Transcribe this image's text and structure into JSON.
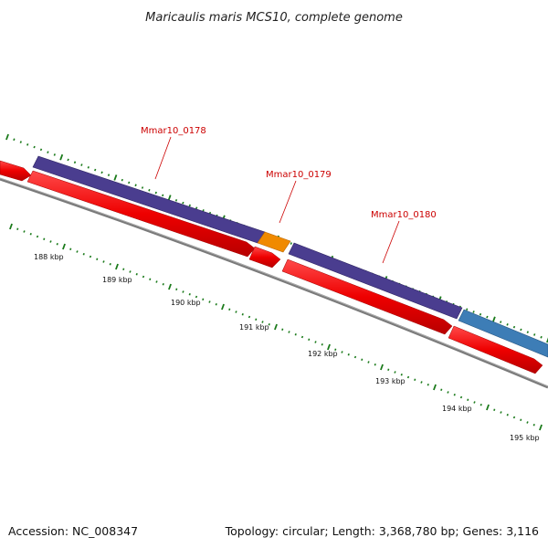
{
  "title": "Maricaulis maris MCS10, complete genome",
  "accession_label": "Accession: NC_008347",
  "topology_label": "Topology: circular; Length: 3,368,780 bp; Genes: 3,116",
  "scale_labels": [
    "188 kbp",
    "189 kbp",
    "190 kbp",
    "191 kbp",
    "192 kbp",
    "193 kbp",
    "194 kbp",
    "195 kbp"
  ],
  "gene_labels": [
    {
      "name": "Mmar10_0178"
    },
    {
      "name": "Mmar10_0179"
    },
    {
      "name": "Mmar10_0180"
    }
  ],
  "colors": {
    "cds": "#ee0000",
    "gene_purple": "#4a3d8f",
    "gene_orange": "#f08a00",
    "gene_blue": "#3d7db6",
    "backbone": "#7a7a7a",
    "ticks": "#1a7a1a",
    "label": "#cc0000"
  }
}
